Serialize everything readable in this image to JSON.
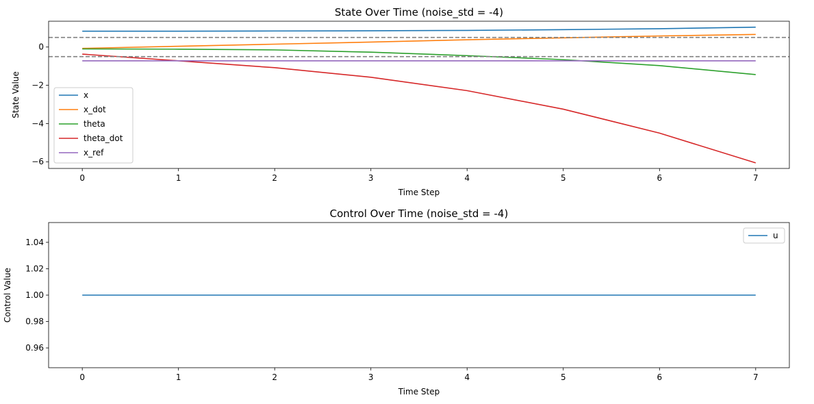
{
  "chart_data": [
    {
      "type": "line",
      "title": "State Over Time (noise_std = -4)",
      "xlabel": "Time Step",
      "ylabel": "State Value",
      "x": [
        0,
        1,
        2,
        3,
        4,
        5,
        6,
        7
      ],
      "xlim": [
        -0.35,
        7.35
      ],
      "ylim": [
        -6.35,
        1.35
      ],
      "xticks": [
        0,
        1,
        2,
        3,
        4,
        5,
        6,
        7
      ],
      "yticks": [
        -6,
        -4,
        -2,
        0
      ],
      "ytick_labels": [
        "−6",
        "−4",
        "−2",
        "0"
      ],
      "grid": false,
      "legend_position": "lower-left",
      "hlines": [
        {
          "y": 0.5,
          "color": "#808080",
          "style": "dashed"
        },
        {
          "y": -0.5,
          "color": "#808080",
          "style": "dashed"
        }
      ],
      "series": [
        {
          "name": "x",
          "color": "#1f77b4",
          "values": [
            0.83,
            0.83,
            0.84,
            0.85,
            0.87,
            0.91,
            0.96,
            1.04
          ]
        },
        {
          "name": "x_dot",
          "color": "#ff7f0e",
          "values": [
            -0.07,
            0.04,
            0.15,
            0.26,
            0.38,
            0.48,
            0.58,
            0.66
          ]
        },
        {
          "name": "theta",
          "color": "#2ca02c",
          "values": [
            -0.1,
            -0.11,
            -0.15,
            -0.27,
            -0.45,
            -0.66,
            -0.97,
            -1.44
          ]
        },
        {
          "name": "theta_dot",
          "color": "#d62728",
          "values": [
            -0.37,
            -0.72,
            -1.08,
            -1.58,
            -2.28,
            -3.25,
            -4.5,
            -6.06
          ]
        },
        {
          "name": "x_ref",
          "color": "#9467bd",
          "values": [
            -0.72,
            -0.72,
            -0.72,
            -0.72,
            -0.72,
            -0.72,
            -0.72,
            -0.72
          ]
        }
      ]
    },
    {
      "type": "line",
      "title": "Control Over Time (noise_std = -4)",
      "xlabel": "Time Step",
      "ylabel": "Control Value",
      "x": [
        0,
        1,
        2,
        3,
        4,
        5,
        6,
        7
      ],
      "xlim": [
        -0.35,
        7.35
      ],
      "ylim": [
        0.945,
        1.055
      ],
      "xticks": [
        0,
        1,
        2,
        3,
        4,
        5,
        6,
        7
      ],
      "yticks": [
        0.96,
        0.98,
        1.0,
        1.02,
        1.04
      ],
      "ytick_labels": [
        "0.96",
        "0.98",
        "1.00",
        "1.02",
        "1.04"
      ],
      "grid": false,
      "legend_position": "upper-right",
      "series": [
        {
          "name": "u",
          "color": "#1f77b4",
          "values": [
            1,
            1,
            1,
            1,
            1,
            1,
            1,
            1
          ]
        }
      ]
    }
  ]
}
